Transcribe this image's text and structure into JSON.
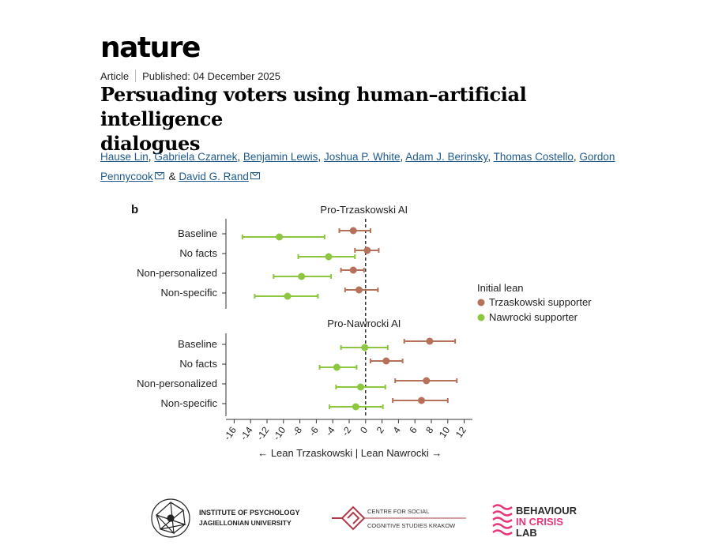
{
  "header": {
    "brand": "nature",
    "article_type": "Article",
    "published": "Published: 04 December 2025",
    "title_line1": "Persuading voters using human–artificial intelligence",
    "title_line2": "dialogues"
  },
  "authors": {
    "names": [
      "Hause Lin",
      "Gabriela Czarnek",
      "Benjamin Lewis",
      "Joshua P. White",
      "Adam J. Berinsky",
      "Thomas Costello",
      "Gordon Pennycook",
      "David G. Rand"
    ],
    "separator": ", ",
    "and": " & "
  },
  "chart_data": {
    "type": "scatter",
    "panel_label": "b",
    "panels": [
      {
        "title": "Pro-Trzaskowski AI",
        "categories": [
          "Baseline",
          "No facts",
          "Non-personalized",
          "Non-specific"
        ],
        "series": [
          {
            "name": "Trzaskowski supporter",
            "color": "#b5715a",
            "values": [
              -1.5,
              0.2,
              -1.5,
              -0.8
            ],
            "ci_low": [
              -3.2,
              -1.3,
              -3.0,
              -2.5
            ],
            "ci_high": [
              0.6,
              1.6,
              -0.2,
              1.5
            ]
          },
          {
            "name": "Nawrocki supporter",
            "color": "#8dc63f",
            "values": [
              -10.5,
              -4.5,
              -7.8,
              -9.5
            ],
            "ci_low": [
              -15.0,
              -8.2,
              -11.2,
              -13.5
            ],
            "ci_high": [
              -5.0,
              -1.3,
              -4.2,
              -5.8
            ]
          }
        ]
      },
      {
        "title": "Pro-Nawrocki AI",
        "categories": [
          "Baseline",
          "No facts",
          "Non-personalized",
          "Non-specific"
        ],
        "series": [
          {
            "name": "Trzaskowski supporter",
            "color": "#b5715a",
            "values": [
              7.8,
              2.5,
              7.4,
              6.8
            ],
            "ci_low": [
              4.7,
              0.6,
              3.6,
              3.3
            ],
            "ci_high": [
              10.9,
              4.5,
              11.1,
              10.0
            ]
          },
          {
            "name": "Nawrocki supporter",
            "color": "#8dc63f",
            "values": [
              -0.1,
              -3.5,
              -0.6,
              -1.2
            ],
            "ci_low": [
              -3.0,
              -5.6,
              -3.6,
              -4.4
            ],
            "ci_high": [
              2.7,
              -1.1,
              2.4,
              2.1
            ]
          }
        ]
      }
    ],
    "x_ticks": [
      -16,
      -14,
      -12,
      -10,
      -8,
      -6,
      -4,
      -2,
      0,
      2,
      4,
      6,
      8,
      10,
      12
    ],
    "xlim": [
      -17,
      13
    ],
    "xlabel": "← Lean Trzaskowski | Lean Nawrocki →",
    "legend": {
      "title": "Initial lean",
      "placement": "right",
      "items": [
        "Trzaskowski supporter",
        "Nawrocki supporter"
      ]
    },
    "zero_line": "dashed"
  },
  "logos": {
    "institute_line1": "INSTITUTE OF PSYCHOLOGY",
    "institute_line2": "JAGIELLONIAN UNIVERSITY",
    "centre_line1": "CENTRE FOR SOCIAL",
    "centre_line2": "COGNITIVE STUDIES KRAKOW",
    "behaviour_line1": "BEHAVIOUR",
    "behaviour_line2": "IN CRISIS",
    "behaviour_line3": "LAB",
    "colors": {
      "centre": "#b23a48",
      "behaviour_pink": "#e8357a",
      "behaviour_dark": "#2a2a2a"
    }
  }
}
